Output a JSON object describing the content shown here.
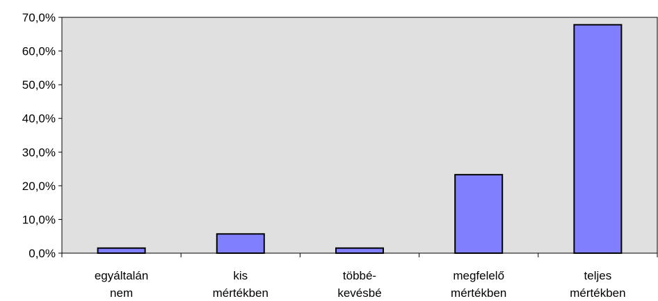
{
  "chart_data": {
    "type": "bar",
    "title": "",
    "xlabel": "",
    "ylabel": "",
    "categories": [
      [
        "egyáltalán",
        "nem"
      ],
      [
        "kis",
        "mértékben"
      ],
      [
        "többé-",
        "kevésbé"
      ],
      [
        "megfelelő",
        "mértékben"
      ],
      [
        "teljes",
        "mértékben"
      ]
    ],
    "values": [
      1.5,
      5.7,
      1.5,
      23.3,
      67.8
    ],
    "ylim": [
      0,
      70
    ],
    "yticks": [
      {
        "value": 0,
        "label": "0,0%"
      },
      {
        "value": 10,
        "label": "10,0%"
      },
      {
        "value": 20,
        "label": "20,0%"
      },
      {
        "value": 30,
        "label": "30,0%"
      },
      {
        "value": 40,
        "label": "40,0%"
      },
      {
        "value": 50,
        "label": "50,0%"
      },
      {
        "value": 60,
        "label": "60,0%"
      },
      {
        "value": 70,
        "label": "70,0%"
      }
    ],
    "grid": false,
    "legend": "none",
    "colors": {
      "bar_fill": "#8080ff",
      "bar_stroke": "#000000",
      "plot_background": "#e0e0e0",
      "axis": "#000000"
    }
  }
}
